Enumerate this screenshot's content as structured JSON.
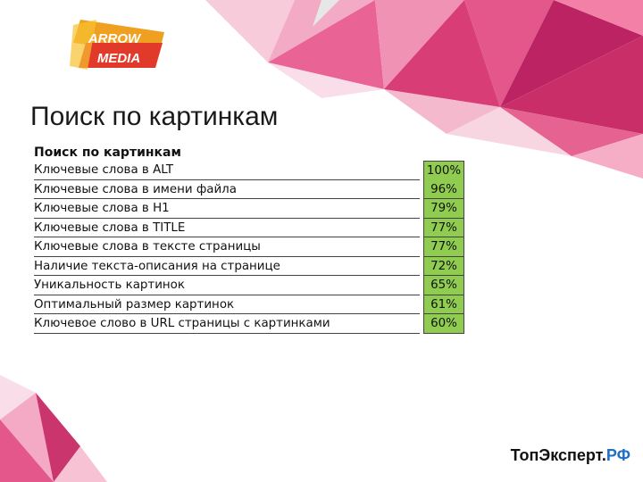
{
  "logo": {
    "line1": "ARROW",
    "line2": "MEDIA"
  },
  "title": "Поиск по картинкам",
  "table": {
    "header": "Поиск по картинкам",
    "rows": [
      {
        "label": "Ключевые слова в ALT",
        "value": "100%"
      },
      {
        "label": "Ключевые слова в имени файла",
        "value": "96%"
      },
      {
        "label": "Ключевые слова в H1",
        "value": "79%"
      },
      {
        "label": "Ключевые слова в TITLE",
        "value": "77%"
      },
      {
        "label": "Ключевые слова в тексте страницы",
        "value": "77%"
      },
      {
        "label": "Наличие текста-описания на странице",
        "value": "72%"
      },
      {
        "label": "Уникальность картинок",
        "value": "65%"
      },
      {
        "label": "Оптимальный размер картинок",
        "value": "61%"
      },
      {
        "label": "Ключевое слово в URL страницы с картинками",
        "value": "60%"
      }
    ]
  },
  "footer": {
    "brand_main": "ТопЭксперт.",
    "brand_suffix": "РФ"
  },
  "colors": {
    "accent": "#e0306e",
    "value_fill": "#8fcc4f",
    "link_blue": "#1f6fc7"
  }
}
